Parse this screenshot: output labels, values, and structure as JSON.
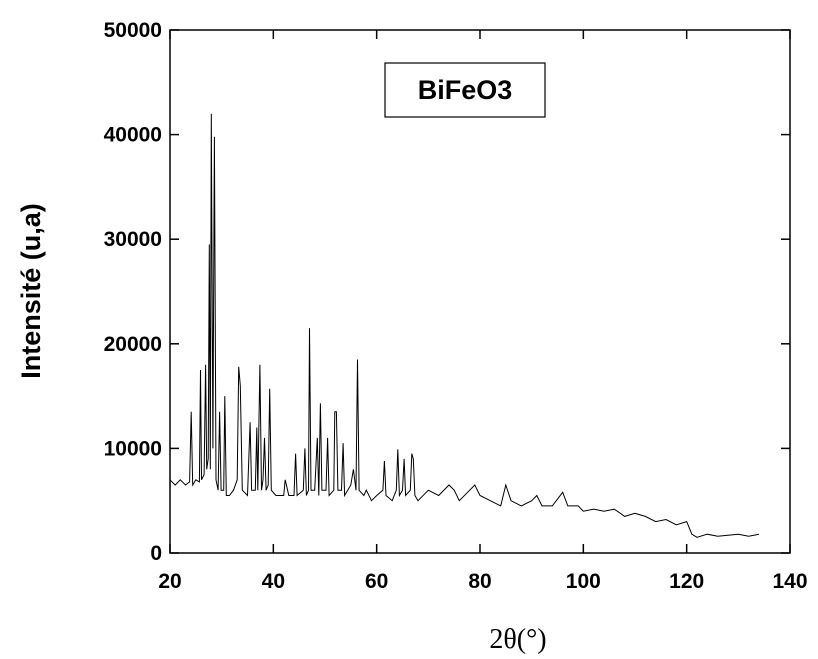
{
  "chart_data": {
    "type": "line",
    "x_label": "2θ(°)",
    "y_label": "Intensité (u,a)",
    "xlim": [
      20,
      140
    ],
    "xticks": [
      20,
      40,
      60,
      80,
      100,
      120,
      140
    ],
    "ylim": [
      0,
      50000
    ],
    "yticks": [
      0,
      10000,
      20000,
      30000,
      40000,
      50000
    ],
    "legend": "top-center",
    "series": [
      {
        "name": "BiFeO3",
        "color": "#000000",
        "x": [
          20,
          21,
          22,
          23,
          23.8,
          24.1,
          24.4,
          25,
          25.7,
          25.9,
          26.1,
          26.6,
          26.9,
          27.1,
          27.4,
          27.6,
          27.8,
          28.0,
          28.3,
          28.6,
          28.9,
          29.3,
          29.6,
          29.9,
          30.4,
          30.6,
          30.9,
          31.5,
          32.3,
          33,
          33.3,
          33.6,
          34,
          35,
          35.5,
          35.8,
          36.5,
          36.8,
          37,
          37.4,
          37.7,
          38,
          38.3,
          38.6,
          39,
          39.3,
          39.6,
          40.5,
          42,
          42.3,
          43,
          44,
          44.3,
          44.6,
          45.8,
          46.1,
          46.4,
          46.8,
          47,
          47.3,
          48,
          48.5,
          48.8,
          49.1,
          49.4,
          50.2,
          50.5,
          50.8,
          51.7,
          51.9,
          52.2,
          52.5,
          53.2,
          53.5,
          53.8,
          55,
          55.5,
          56,
          56.3,
          56.6,
          57.5,
          58,
          59,
          60,
          61.2,
          61.5,
          61.8,
          63,
          63.8,
          64.1,
          64.4,
          65,
          65.3,
          65.6,
          66.5,
          66.8,
          67.1,
          67.4,
          68,
          70,
          72,
          74,
          75,
          76,
          78,
          79,
          80,
          82,
          84,
          85,
          86,
          88,
          90,
          91,
          92,
          94,
          96,
          97,
          99,
          100,
          102,
          104,
          106,
          108,
          110,
          112,
          114,
          116,
          118,
          120,
          120.5,
          121,
          122,
          124,
          126,
          128,
          130,
          132,
          134
        ],
        "values": [
          7000,
          6500,
          7000,
          6500,
          6800,
          13500,
          6500,
          7000,
          6800,
          17500,
          7000,
          7500,
          18000,
          8000,
          9000,
          29500,
          8000,
          42000,
          10000,
          39800,
          7000,
          6000,
          13500,
          6000,
          6000,
          15000,
          5500,
          5500,
          6000,
          7000,
          17800,
          16000,
          6000,
          5500,
          12500,
          6000,
          6000,
          12000,
          6000,
          18000,
          6000,
          7000,
          11000,
          6000,
          6500,
          15700,
          6000,
          5500,
          5500,
          7000,
          5500,
          5500,
          9500,
          5500,
          6000,
          10000,
          5500,
          6000,
          21500,
          6000,
          6000,
          11000,
          5500,
          14300,
          6000,
          6000,
          11000,
          5500,
          6000,
          13500,
          13500,
          6000,
          6000,
          10500,
          5500,
          6500,
          8000,
          6000,
          18500,
          6000,
          5500,
          6000,
          5000,
          5500,
          6000,
          8800,
          5500,
          5000,
          6000,
          9900,
          5500,
          6000,
          9000,
          5500,
          6000,
          9500,
          9000,
          5500,
          5000,
          6000,
          5500,
          6500,
          6000,
          5000,
          6000,
          6500,
          5500,
          5000,
          4500,
          6500,
          5000,
          4500,
          5000,
          5500,
          4500,
          4500,
          5800,
          4500,
          4500,
          4000,
          4200,
          4000,
          4200,
          3500,
          3800,
          3500,
          3000,
          3200,
          2700,
          3000,
          2400,
          1800,
          1500,
          1800,
          1600,
          1700,
          1800,
          1600,
          1800
        ]
      }
    ]
  }
}
